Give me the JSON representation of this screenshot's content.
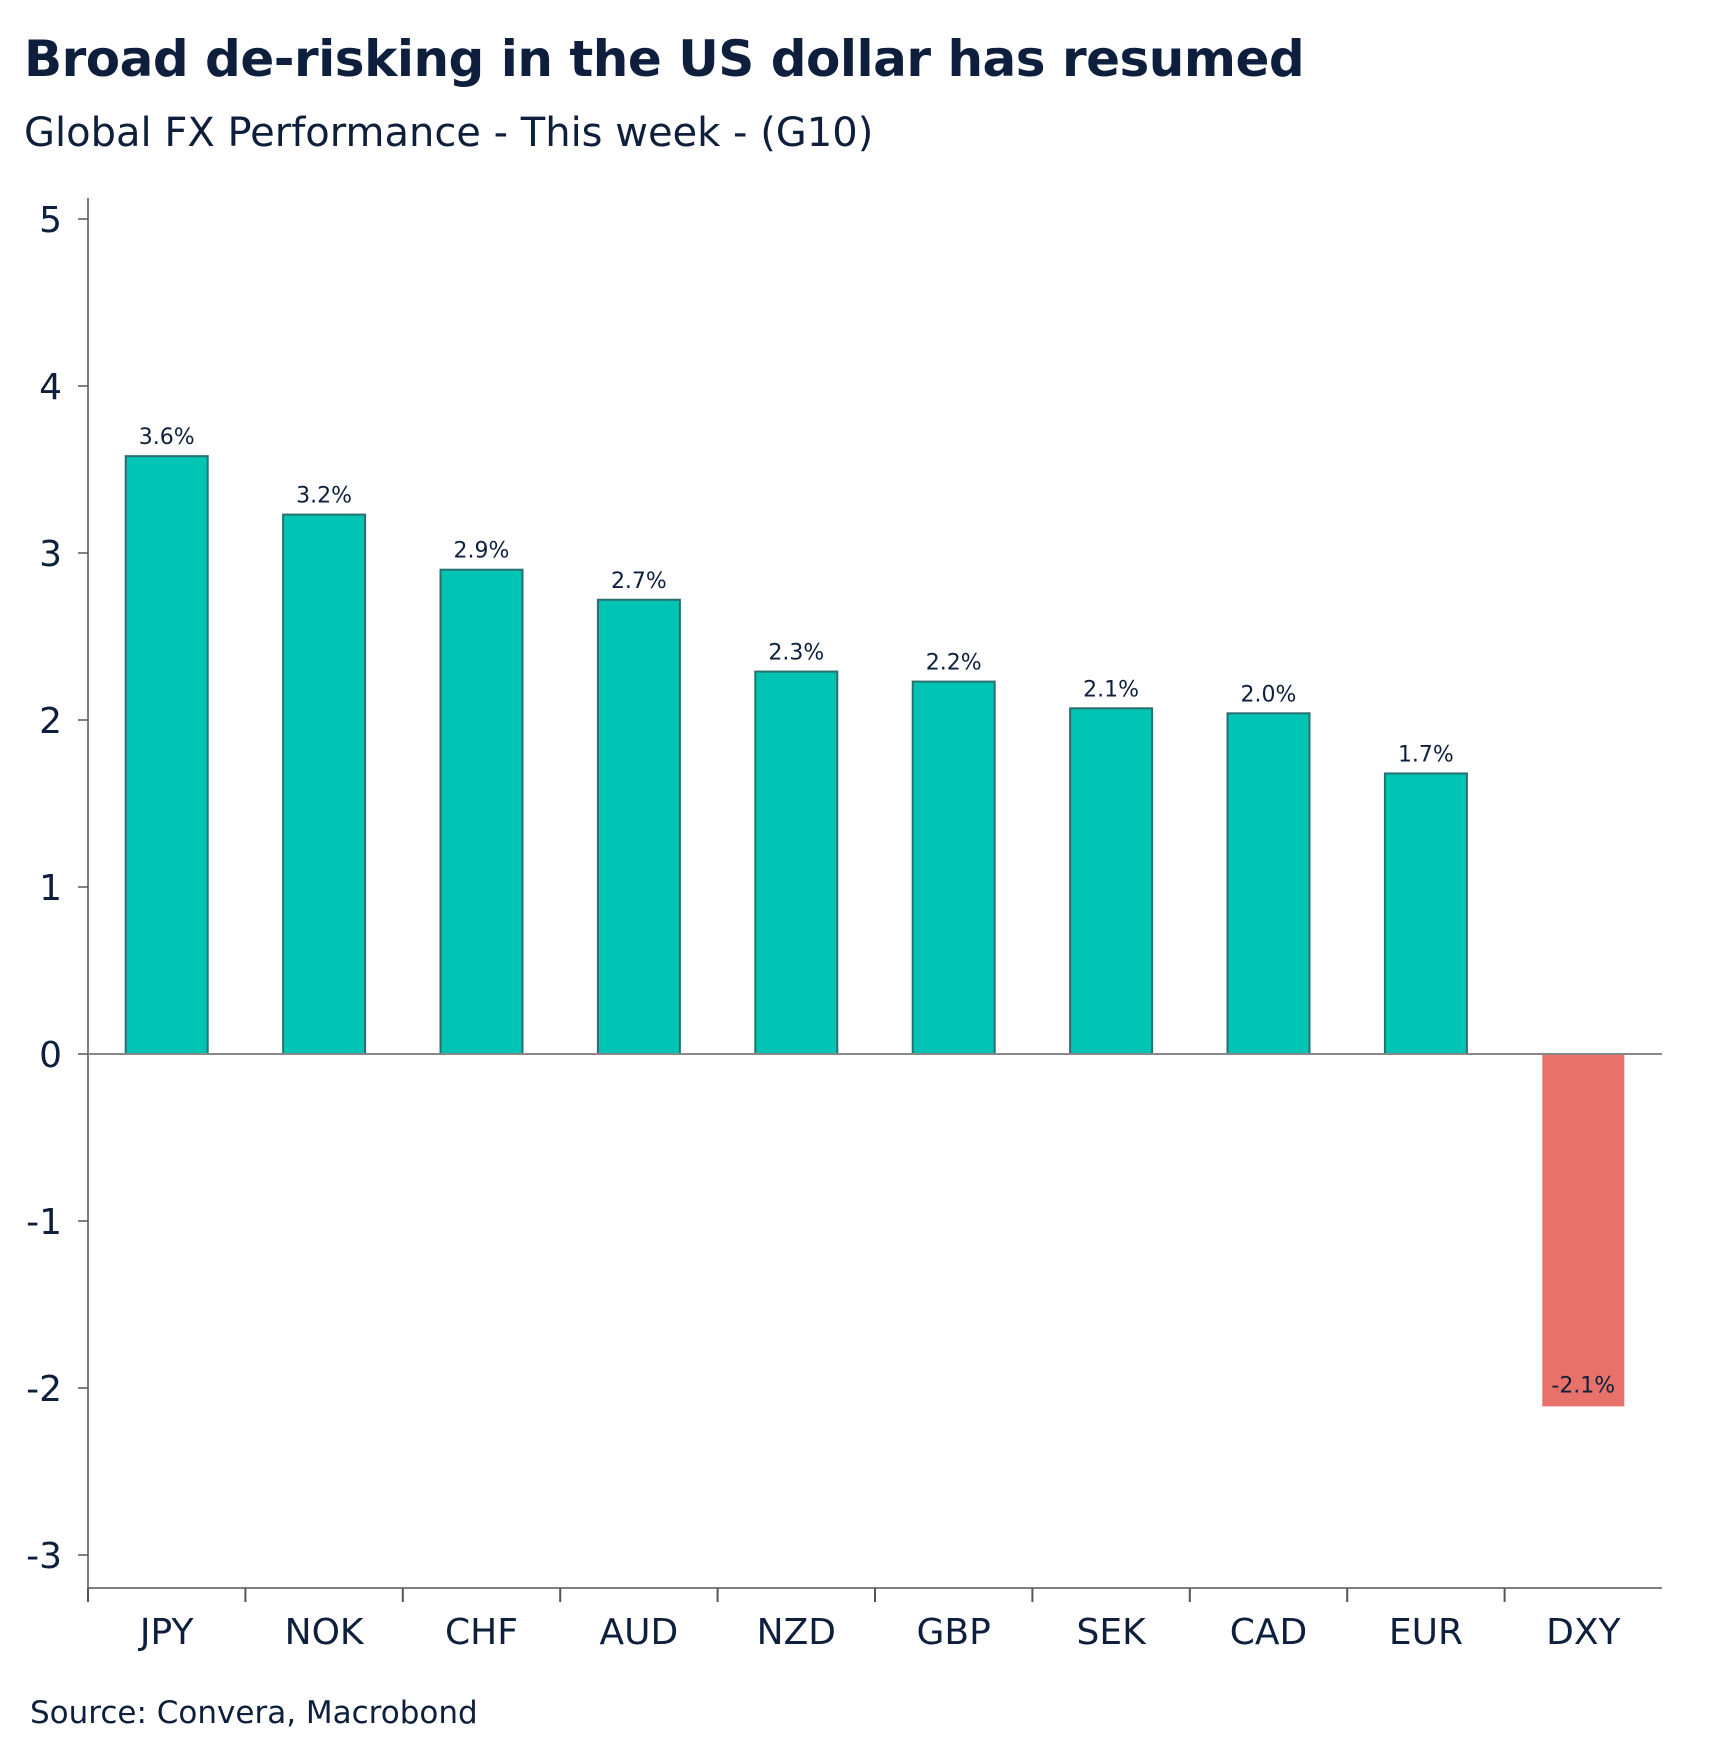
{
  "title": "Broad de-risking in the US dollar has resumed",
  "subtitle": "Global FX Performance - This week - (G10)",
  "source": "Source: Convera, Macrobond",
  "colors": {
    "positive": "#00C4B3",
    "positive_edge": "#2a6f70",
    "negative": "#E8716A",
    "axis": "#555555",
    "text": "#0d1f3c"
  },
  "chart_data": {
    "type": "bar",
    "title": "Broad de-risking in the US dollar has resumed",
    "subtitle": "Global FX Performance - This week - (G10)",
    "xlabel": "",
    "ylabel": "",
    "categories": [
      "JPY",
      "NOK",
      "CHF",
      "AUD",
      "NZD",
      "GBP",
      "SEK",
      "CAD",
      "EUR",
      "DXY"
    ],
    "values": [
      3.58,
      3.23,
      2.9,
      2.72,
      2.29,
      2.23,
      2.07,
      2.04,
      1.68,
      -2.11
    ],
    "data_labels": [
      "3.6%",
      "3.2%",
      "2.9%",
      "2.7%",
      "2.3%",
      "2.2%",
      "2.1%",
      "2.0%",
      "1.7%",
      "-2.1%"
    ],
    "ylim": [
      -3.17,
      5.18
    ],
    "yticks": [
      5,
      4,
      3,
      2,
      1,
      0,
      -1,
      -2,
      -3
    ],
    "grid": false,
    "legend": "none"
  }
}
